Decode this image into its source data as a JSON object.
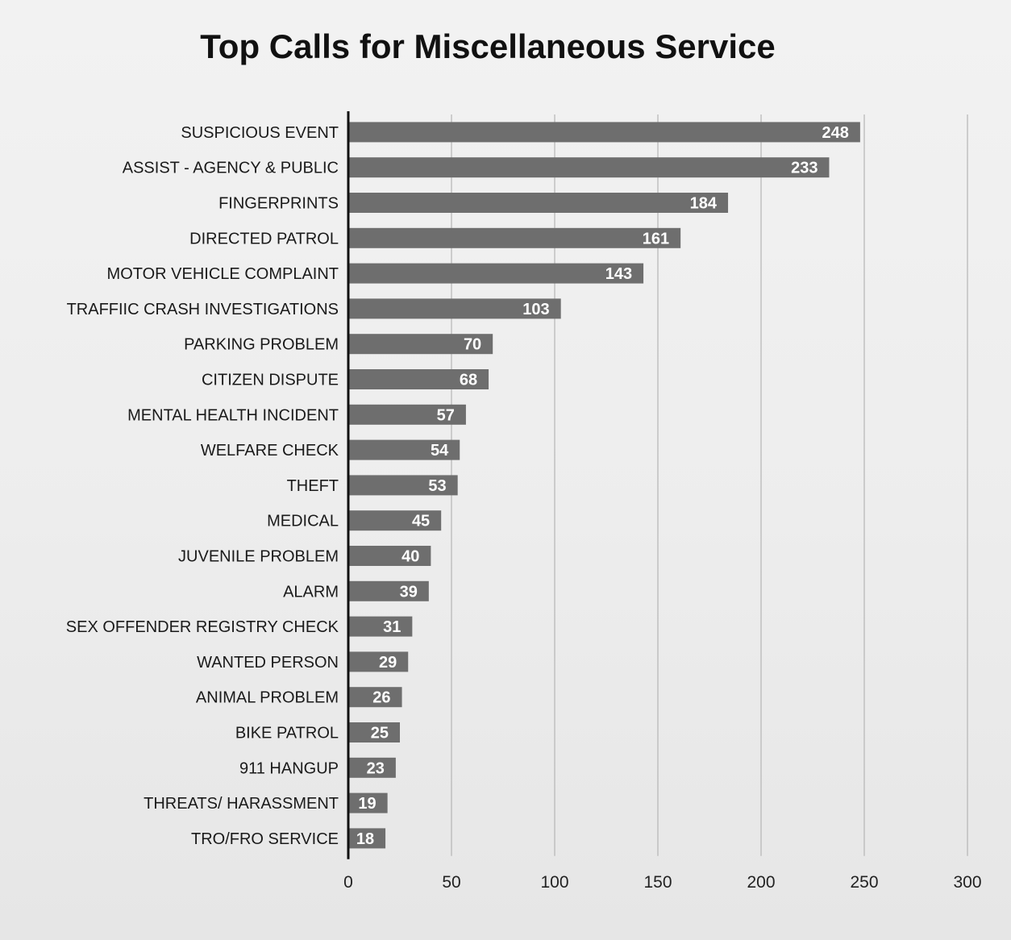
{
  "chart_data": {
    "type": "bar",
    "orientation": "horizontal",
    "title": "Top Calls for Miscellaneous Service",
    "xlabel": "",
    "ylabel": "",
    "xlim": [
      0,
      300
    ],
    "xticks": [
      0,
      50,
      100,
      150,
      200,
      250,
      300
    ],
    "grid": "vertical",
    "bar_color": "#6e6e6e",
    "label_color": "#ffffff",
    "categories": [
      "SUSPICIOUS EVENT",
      "ASSIST - AGENCY & PUBLIC",
      "FINGERPRINTS",
      "DIRECTED PATROL",
      "MOTOR VEHICLE COMPLAINT",
      "TRAFFIIC CRASH INVESTIGATIONS",
      "PARKING PROBLEM",
      "CITIZEN DISPUTE",
      "MENTAL HEALTH INCIDENT",
      "WELFARE CHECK",
      "THEFT",
      "MEDICAL",
      "JUVENILE PROBLEM",
      "ALARM",
      "SEX OFFENDER REGISTRY CHECK",
      "WANTED PERSON",
      "ANIMAL PROBLEM",
      "BIKE PATROL",
      "911 HANGUP",
      "THREATS/ HARASSMENT",
      "TRO/FRO SERVICE"
    ],
    "values": [
      248,
      233,
      184,
      161,
      143,
      103,
      70,
      68,
      57,
      54,
      53,
      45,
      40,
      39,
      31,
      29,
      26,
      25,
      23,
      19,
      18
    ]
  }
}
